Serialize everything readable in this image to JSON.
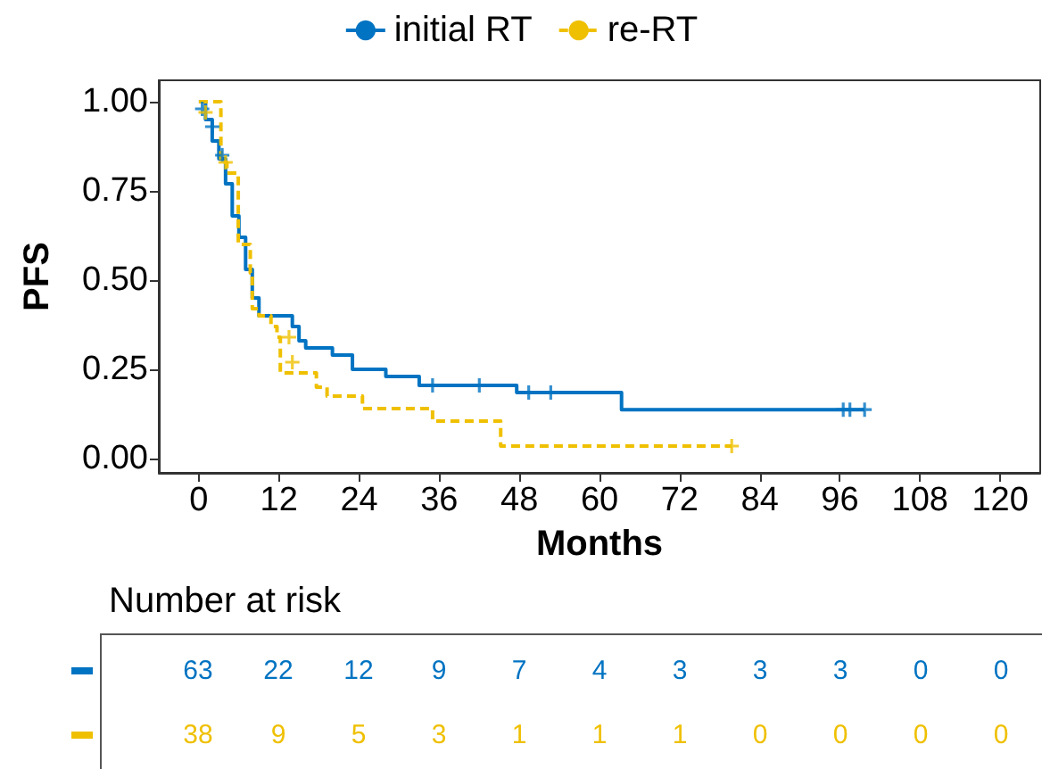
{
  "chart_data": [
    {
      "type": "step",
      "xlabel": "Months",
      "ylabel": "PFS",
      "legend": "top",
      "grid": false,
      "xlim": [
        -6,
        126
      ],
      "xticks": [
        0,
        12,
        24,
        36,
        48,
        60,
        72,
        84,
        96,
        108,
        120
      ],
      "ylim": [
        -0.04,
        1.06
      ],
      "yticks": [
        {
          "value": 0,
          "label": "0.00"
        },
        {
          "value": 0.25,
          "label": "0.25"
        },
        {
          "value": 0.5,
          "label": "0.50"
        },
        {
          "value": 0.75,
          "label": "0.75"
        },
        {
          "value": 1,
          "label": "1.00"
        }
      ],
      "series": [
        {
          "name": "initial RT",
          "color": "#0073c2",
          "line_style": "solid",
          "x": [
            0,
            1,
            2,
            3,
            4,
            5,
            6,
            7,
            8,
            9,
            14,
            15,
            16,
            20,
            23,
            28,
            33,
            47.6,
            63.3,
            99.7
          ],
          "values": [
            1.0,
            0.95,
            0.89,
            0.84,
            0.77,
            0.68,
            0.62,
            0.53,
            0.45,
            0.4,
            0.37,
            0.33,
            0.31,
            0.29,
            0.25,
            0.23,
            0.205,
            0.185,
            0.137,
            0.137
          ]
        },
        {
          "name": "re-RT",
          "color": "#efc000",
          "line_style": "dashed",
          "x": [
            0,
            3.3,
            4.2,
            5.9,
            7.7,
            8,
            9,
            10.8,
            11.7,
            12.2,
            17.6,
            19.2,
            24.5,
            35,
            45.2,
            79.8
          ],
          "values": [
            1.0,
            0.83,
            0.8,
            0.6,
            0.52,
            0.42,
            0.4,
            0.37,
            0.34,
            0.24,
            0.2,
            0.175,
            0.14,
            0.105,
            0.035,
            0.035
          ]
        },
        {
          "type": "scatter",
          "marker": "cross",
          "color": "#0073c2",
          "x": [
            0.5,
            2,
            3.5,
            35,
            42,
            49.4,
            52.7,
            96.5,
            97.5,
            99.7
          ],
          "values": [
            0.98,
            0.93,
            0.85,
            0.205,
            0.205,
            0.185,
            0.185,
            0.137,
            0.137,
            0.137
          ]
        },
        {
          "type": "scatter",
          "marker": "cross",
          "color": "#efc000",
          "x": [
            1,
            4,
            13.5,
            14,
            79.8
          ],
          "values": [
            0.97,
            0.83,
            0.34,
            0.27,
            0.035
          ]
        }
      ]
    },
    {
      "type": "heatmap",
      "title": "Number at risk",
      "categories": [
        null,
        null,
        null,
        null,
        null,
        null,
        null,
        null,
        null,
        null,
        null
      ],
      "y_categories": [
        null,
        null
      ],
      "data_labels": true,
      "cells": [
        [
          63,
          22,
          12,
          9,
          7,
          4,
          3,
          3,
          3,
          0,
          0
        ],
        [
          38,
          9,
          5,
          3,
          1,
          1,
          1,
          0,
          0,
          0,
          0
        ]
      ]
    }
  ]
}
